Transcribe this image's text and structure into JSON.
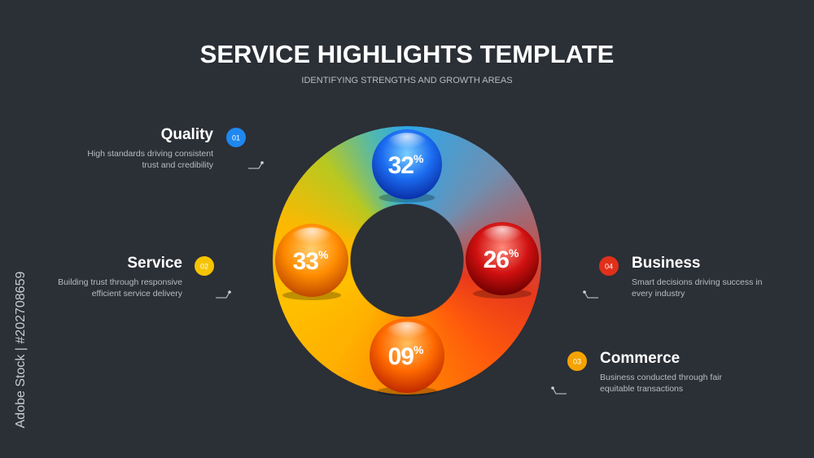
{
  "header": {
    "title": "SERVICE HIGHLIGHTS TEMPLATE",
    "subtitle": "IDENTIFYING STRENGTHS AND GROWTH AREAS"
  },
  "items": [
    {
      "number": "01",
      "title": "Quality",
      "description": [
        "High standards driving consistent",
        "trust and credibility"
      ],
      "value": "32",
      "unit": "%",
      "color": "#1e88f0"
    },
    {
      "number": "02",
      "title": "Service",
      "description": [
        "Building trust through responsive",
        "efficient service delivery"
      ],
      "value": "33",
      "unit": "%",
      "color": "#f5c400"
    },
    {
      "number": "03",
      "title": "Commerce",
      "description": [
        "Business conducted through fair",
        "equitable transactions"
      ],
      "value": "09",
      "unit": "%",
      "color": "#f5a300"
    },
    {
      "number": "04",
      "title": "Business",
      "description": [
        "Smart decisions driving success in",
        "every industry"
      ],
      "value": "26",
      "unit": "%",
      "color": "#e0301a"
    }
  ],
  "watermark": "Adobe Stock | #202708659"
}
